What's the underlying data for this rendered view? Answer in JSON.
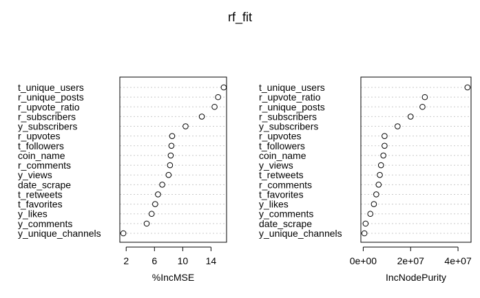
{
  "chart_data": {
    "type": "scatter",
    "title": "rf_fit",
    "grid": "dotted horizontal lines per variable",
    "panels": [
      {
        "xlabel": "%IncMSE",
        "xlim": [
          1.1,
          16.2
        ],
        "ticks": [
          2,
          6,
          10,
          14
        ],
        "tick_labels": [
          "2",
          "6",
          "10",
          "14"
        ],
        "categories": [
          "t_unique_users",
          "r_unique_posts",
          "r_upvote_ratio",
          "r_subscribers",
          "y_subscribers",
          "r_upvotes",
          "t_followers",
          "coin_name",
          "r_comments",
          "y_views",
          "date_scrape",
          "t_retweets",
          "t_favorites",
          "y_likes",
          "y_comments",
          "y_unique_channels"
        ],
        "values": [
          15.8,
          15.0,
          14.5,
          12.7,
          10.4,
          8.5,
          8.4,
          8.3,
          8.2,
          8.0,
          7.1,
          6.5,
          6.1,
          5.6,
          4.9,
          1.6
        ]
      },
      {
        "xlabel": "IncNodePurity",
        "xlim": [
          -1000000.0,
          45500000.0
        ],
        "ticks": [
          0,
          20000000,
          40000000
        ],
        "tick_labels": [
          "0e+00",
          "2e+07",
          "4e+07"
        ],
        "categories": [
          "t_unique_users",
          "r_upvote_ratio",
          "r_unique_posts",
          "r_subscribers",
          "y_subscribers",
          "r_upvotes",
          "t_followers",
          "coin_name",
          "y_views",
          "t_retweets",
          "r_comments",
          "t_favorites",
          "y_likes",
          "y_comments",
          "date_scrape",
          "y_unique_channels"
        ],
        "values": [
          44000000,
          26000000,
          25000000,
          20000000,
          14500000,
          9000000,
          9000000,
          8500000,
          7500000,
          7000000,
          6500000,
          5500000,
          4500000,
          3000000,
          1000000,
          500000
        ]
      }
    ]
  }
}
